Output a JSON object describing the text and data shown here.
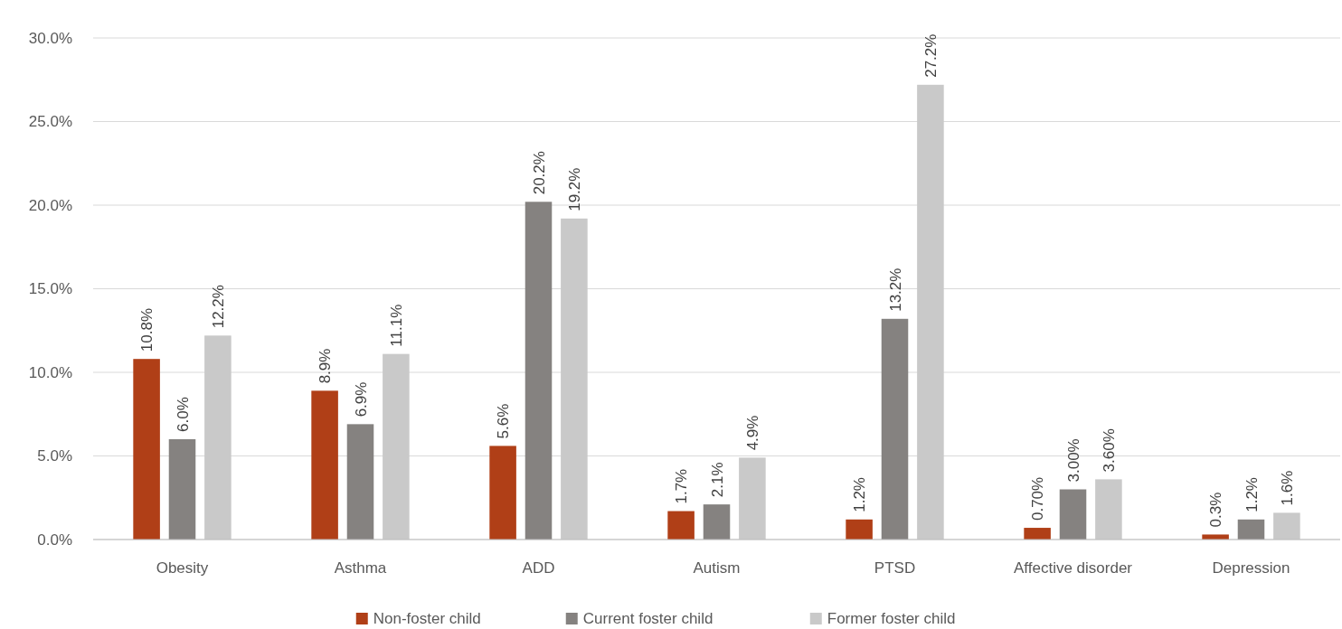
{
  "chart_data": {
    "type": "bar",
    "categories": [
      "Obesity",
      "Asthma",
      "ADD",
      "Autism",
      "PTSD",
      "Affective disorder",
      "Depression"
    ],
    "series": [
      {
        "name": "Non-foster child",
        "color": "#b03f17",
        "values": [
          10.8,
          8.9,
          5.6,
          1.7,
          1.2,
          0.7,
          0.3
        ],
        "value_labels": [
          "10.8%",
          "8.9%",
          "5.6%",
          "1.7%",
          "1.2%",
          "0.70%",
          "0.3%"
        ]
      },
      {
        "name": "Current foster child",
        "color": "#858280",
        "values": [
          6.0,
          6.9,
          20.2,
          2.1,
          13.2,
          3.0,
          1.2
        ],
        "value_labels": [
          "6.0%",
          "6.9%",
          "20.2%",
          "2.1%",
          "13.2%",
          "3.00%",
          "1.2%"
        ]
      },
      {
        "name": "Former foster child",
        "color": "#c9c9c9",
        "values": [
          12.2,
          11.1,
          19.2,
          4.9,
          27.2,
          3.6,
          1.6
        ],
        "value_labels": [
          "12.2%",
          "11.1%",
          "19.2%",
          "4.9%",
          "27.2%",
          "3.60%",
          "1.6%"
        ]
      }
    ],
    "ylim": [
      0,
      30
    ],
    "yticks": [
      {
        "value": 0,
        "label": "0.0%"
      },
      {
        "value": 5,
        "label": "5.0%"
      },
      {
        "value": 10,
        "label": "10.0%"
      },
      {
        "value": 15,
        "label": "15.0%"
      },
      {
        "value": 20,
        "label": "20.0%"
      },
      {
        "value": 25,
        "label": "25.0%"
      },
      {
        "value": 30,
        "label": "30.0%"
      }
    ],
    "grid": "y",
    "legend": "bottom"
  }
}
